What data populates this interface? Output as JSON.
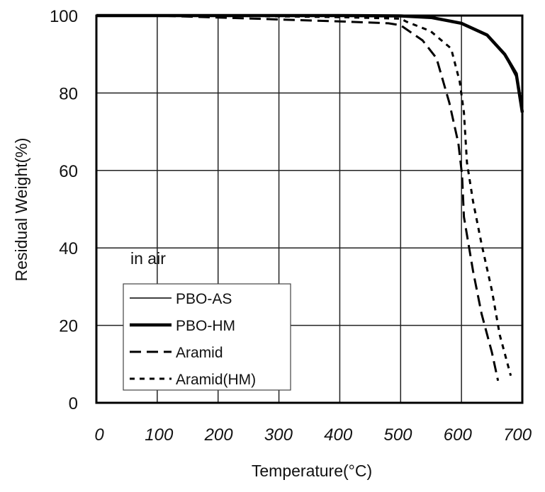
{
  "chart_data": {
    "type": "line",
    "title": "",
    "xlabel": "Temperature(°C)",
    "ylabel": "Residual Weight(%)",
    "xlim": [
      0,
      700
    ],
    "ylim": [
      0,
      100
    ],
    "xticks": [
      "0",
      "100",
      "200",
      "300",
      "400",
      "500",
      "600",
      "700"
    ],
    "yticks": [
      "0",
      "20",
      "40",
      "60",
      "80",
      "100"
    ],
    "grid": true,
    "annotation": "in air",
    "legend_position": "bottom-left",
    "series": [
      {
        "name": "PBO-AS",
        "style": "thin-solid",
        "x": [
          0,
          100,
          200,
          300,
          400,
          500,
          550,
          600,
          640,
          670,
          690,
          700
        ],
        "y": [
          100,
          100,
          100,
          100,
          100,
          99.8,
          99.3,
          98,
          95,
          90,
          84,
          77
        ]
      },
      {
        "name": "PBO-HM",
        "style": "thick-solid",
        "x": [
          0,
          100,
          200,
          300,
          400,
          500,
          550,
          600,
          642,
          671,
          690,
          697,
          700
        ],
        "y": [
          100,
          100,
          100,
          100,
          100,
          99.9,
          99.5,
          98,
          95,
          90,
          85,
          78,
          75
        ]
      },
      {
        "name": "Aramid",
        "style": "long-dash",
        "x": [
          0,
          100,
          200,
          300,
          400,
          480,
          500,
          536,
          559,
          580,
          595,
          601,
          604,
          619,
          633,
          650,
          660
        ],
        "y": [
          100,
          100,
          99.5,
          99,
          98.5,
          98,
          97.5,
          93.6,
          89,
          77.5,
          67,
          58.7,
          48,
          34,
          23,
          13,
          5.7
        ]
      },
      {
        "name": "Aramid(HM)",
        "style": "short-dash",
        "x": [
          0,
          100,
          200,
          300,
          400,
          500,
          510,
          549,
          583,
          597,
          604,
          609,
          619,
          633,
          650,
          663,
          681
        ],
        "y": [
          100,
          100,
          100,
          99.8,
          99.6,
          99.2,
          98.4,
          96,
          91.5,
          83,
          75,
          62,
          52,
          41,
          29,
          17.5,
          7
        ]
      }
    ]
  }
}
